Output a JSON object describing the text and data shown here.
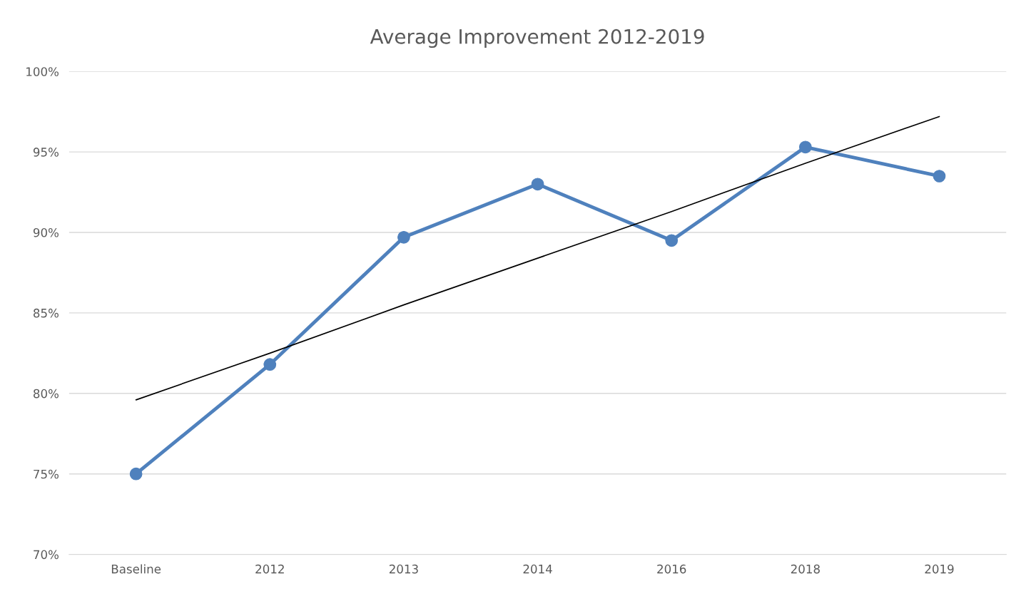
{
  "chart_data": {
    "type": "line",
    "title": "Average Improvement 2012-2019",
    "categories": [
      "Baseline",
      "2012",
      "2013",
      "2014",
      "2016",
      "2018",
      "2019"
    ],
    "series": [
      {
        "color": "#4f81bd",
        "values": [
          75.0,
          81.8,
          89.7,
          93.0,
          89.5,
          95.3,
          93.5
        ],
        "marker": "circle"
      },
      {
        "type": "line",
        "color": "#000000",
        "values": [
          79.6,
          82.5,
          85.5,
          88.4,
          91.3,
          94.3,
          97.2
        ],
        "marker": "none"
      }
    ],
    "ylim": [
      70,
      100
    ],
    "yticks": [
      {
        "value": 70,
        "label": "70%"
      },
      {
        "value": 75,
        "label": "75%"
      },
      {
        "value": 80,
        "label": "80%"
      },
      {
        "value": 85,
        "label": "85%"
      },
      {
        "value": 90,
        "label": "90%"
      },
      {
        "value": 95,
        "label": "95%"
      },
      {
        "value": 100,
        "label": "100%"
      }
    ],
    "grid": "y",
    "legend": false
  }
}
